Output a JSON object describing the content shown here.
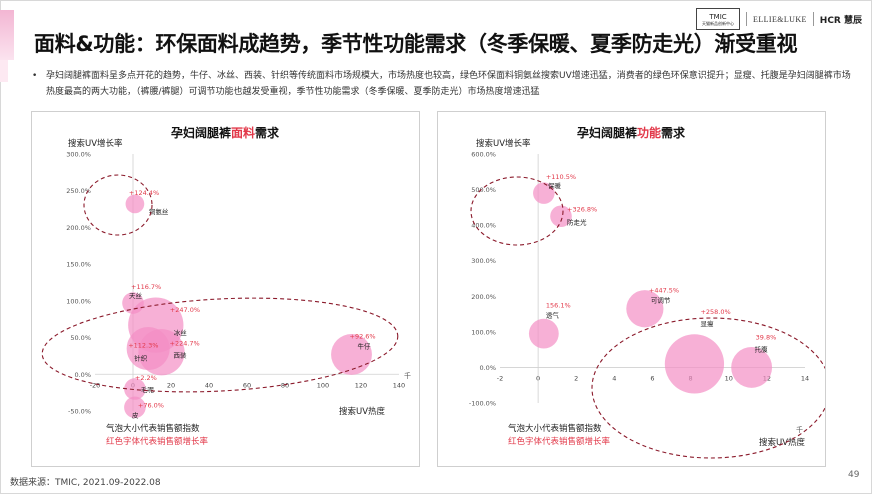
{
  "header": {
    "title": "面料&功能：环保面料成趋势，季节性功能需求（冬季保暖、夏季防走光）渐受重视",
    "logos": {
      "tmic_main": "TMIC",
      "tmic_sub": "天猫新品创新中心",
      "ellie": "ELLIE&LUKE",
      "hcr": "HCR 慧辰"
    }
  },
  "bullet": {
    "marker": "•",
    "text": "孕妇阔腿裤面料呈多点开花的趋势，牛仔、冰丝、西装、针织等传统面料市场规模大，市场热度也较高，绿色环保面料铜氨丝搜索UV增速迅猛，消费者的绿色环保意识提升；显瘦、托腹是孕妇阔腿裤市场热度最高的两大功能，（裤腰/裤腿）可调节功能也越发受重视，季节性功能需求（冬季保暖、夏季防走光）市场热度增速迅猛"
  },
  "colors": {
    "bubble": "#f48fc4",
    "growth_label": "#e2394a",
    "dashed_ellipse": "#8b1a2b"
  },
  "chart_data": [
    {
      "type": "scatter",
      "title_prefix": "孕妇阔腿裤",
      "title_highlight": "面料",
      "title_suffix": "需求",
      "ylabel": "搜索UV增长率",
      "xlabel": "搜索UV热度",
      "x_unit": "千",
      "xlim": [
        -20,
        140
      ],
      "ylim": [
        -50,
        300
      ],
      "x_ticks": [
        "-20",
        "0",
        "20",
        "40",
        "60",
        "80",
        "100",
        "120",
        "140"
      ],
      "y_ticks": [
        "-50.0%",
        "0.0%",
        "50.0%",
        "100.0%",
        "150.0%",
        "200.0%",
        "250.0%",
        "300.0%"
      ],
      "legend_size": "气泡大小代表销售额指数",
      "legend_color": "红色字体代表销售额增长率",
      "points": [
        {
          "name": "铜氨丝",
          "x": 1,
          "y": 232,
          "size": 2,
          "growth": "+124.4%"
        },
        {
          "name": "天丝",
          "x": 0,
          "y": 97,
          "size": 3,
          "growth": "+116.7%"
        },
        {
          "name": "冰丝",
          "x": 12,
          "y": 67,
          "size": 30,
          "growth": "+247.0%"
        },
        {
          "name": "针织",
          "x": 8,
          "y": 35,
          "size": 17,
          "growth": "+112.3%"
        },
        {
          "name": "西装",
          "x": 15,
          "y": 30,
          "size": 20,
          "growth": "+224.7%"
        },
        {
          "name": "牛仔",
          "x": 115,
          "y": 27,
          "size": 15,
          "growth": "+92.6%"
        },
        {
          "name": "毛呢",
          "x": 1,
          "y": -20,
          "size": 3,
          "growth": "+2.2%"
        },
        {
          "name": "皮",
          "x": 1,
          "y": -45,
          "size": 3,
          "growth": "+76.0%"
        }
      ]
    },
    {
      "type": "scatter",
      "title_prefix": "孕妇阔腿裤",
      "title_highlight": "功能",
      "title_suffix": "需求",
      "ylabel": "搜索UV增长率",
      "xlabel": "搜索UV热度",
      "x_unit": "千",
      "xlim": [
        -2,
        14
      ],
      "ylim": [
        -100,
        600
      ],
      "x_ticks": [
        "-2",
        "0",
        "2",
        "4",
        "6",
        "8",
        "10",
        "12",
        "14"
      ],
      "y_ticks": [
        "-100.0%",
        "0.0%",
        "100.0%",
        "200.0%",
        "300.0%",
        "400.0%",
        "500.0%",
        "600.0%"
      ],
      "legend_size": "气泡大小代表销售额指数",
      "legend_color": "红色字体代表销售额增长率",
      "points": [
        {
          "name": "保暖",
          "x": 0.3,
          "y": 490,
          "size": 3,
          "growth": "+110.5%"
        },
        {
          "name": "防走光",
          "x": 1.2,
          "y": 425,
          "size": 3,
          "growth": "+326.8%"
        },
        {
          "name": "透气",
          "x": 0.3,
          "y": 95,
          "size": 7,
          "growth": "156.1%"
        },
        {
          "name": "可调节",
          "x": 5.6,
          "y": 165,
          "size": 12,
          "growth": "+447.5%"
        },
        {
          "name": "显瘦",
          "x": 8.2,
          "y": 10,
          "size": 35,
          "growth": "+258.0%"
        },
        {
          "name": "托腹",
          "x": 11.2,
          "y": 0,
          "size": 15,
          "growth": "39.8%"
        }
      ]
    }
  ],
  "footer": {
    "source": "数据来源：TMIC, 2021.09-2022.08",
    "page": "49"
  }
}
